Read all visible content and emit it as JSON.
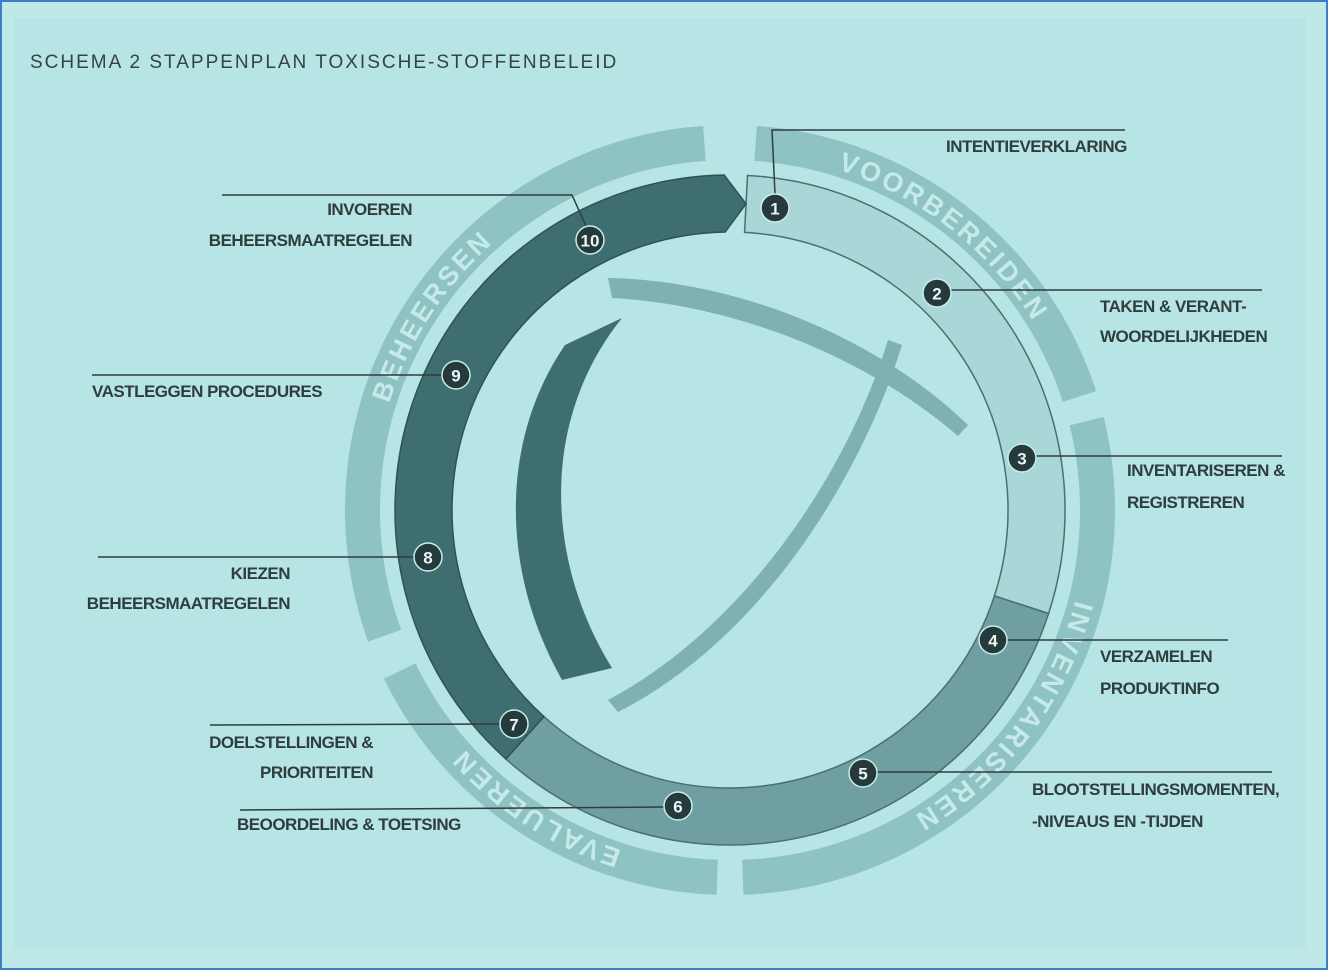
{
  "title": "SCHEMA 2  STAPPENPLAN TOXISCHE-STOFFENBELEID",
  "phases": [
    "VOORBEREIDEN",
    "INVENTARISEREN",
    "EVALUEREN",
    "BEHEERSEN"
  ],
  "steps": [
    {
      "number": "1",
      "label": [
        "INTENTIEVERKLARING"
      ]
    },
    {
      "number": "2",
      "label": [
        "TAKEN & VERANT-",
        "WOORDELIJKHEDEN"
      ]
    },
    {
      "number": "3",
      "label": [
        "INVENTARISEREN &",
        "REGISTREREN"
      ]
    },
    {
      "number": "4",
      "label": [
        "VERZAMELEN",
        "PRODUKTINFO"
      ]
    },
    {
      "number": "5",
      "label": [
        "BLOOTSTELLINGSMOMENTEN,",
        "-NIVEAUS EN -TIJDEN"
      ]
    },
    {
      "number": "6",
      "label": [
        "BEOORDELING & TOETSING"
      ]
    },
    {
      "number": "7",
      "label": [
        "DOELSTELLINGEN &",
        "PRIORITEITEN"
      ]
    },
    {
      "number": "8",
      "label": [
        "KIEZEN",
        "BEHEERSMAATREGELEN"
      ]
    },
    {
      "number": "9",
      "label": [
        "VASTLEGGEN PROCEDURES"
      ]
    },
    {
      "number": "10",
      "label": [
        "INVOEREN",
        "BEHEERSMAATREGELEN"
      ]
    }
  ]
}
